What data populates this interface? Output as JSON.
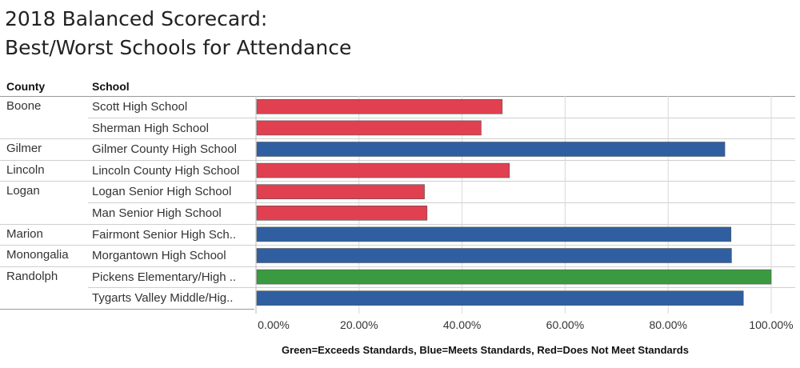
{
  "title_line1": "2018 Balanced Scorecard:",
  "title_line2": "Best/Worst Schools for Attendance",
  "headers": {
    "county": "County",
    "school": "School"
  },
  "legend_note": "Green=Exceeds Standards, Blue=Meets Standards, Red=Does Not Meet Standards",
  "colors": {
    "green": "#3a9a3f",
    "blue": "#2f5fa0",
    "red": "#e0404f",
    "grid": "#d8d8d8"
  },
  "chart_data": {
    "type": "bar",
    "orientation": "horizontal",
    "title": "2018 Balanced Scorecard: Best/Worst Schools for Attendance",
    "xlim": [
      0,
      1.0
    ],
    "ticks": [
      "0.00%",
      "20.00%",
      "40.00%",
      "60.00%",
      "80.00%",
      "100.00%"
    ],
    "tick_values": [
      0,
      0.2,
      0.4,
      0.6,
      0.8,
      1.0
    ],
    "rows": [
      {
        "county": "Boone",
        "school": "Scott High School",
        "value": 0.478,
        "status": "red"
      },
      {
        "county": "",
        "school": "Sherman High School",
        "value": 0.437,
        "status": "red"
      },
      {
        "county": "Gilmer",
        "school": "Gilmer County High School",
        "value": 0.91,
        "status": "blue"
      },
      {
        "county": "Lincoln",
        "school": "Lincoln County High School",
        "value": 0.492,
        "status": "red"
      },
      {
        "county": "Logan",
        "school": "Logan Senior High School",
        "value": 0.327,
        "status": "red"
      },
      {
        "county": "",
        "school": "Man Senior High School",
        "value": 0.332,
        "status": "red"
      },
      {
        "county": "Marion",
        "school": "Fairmont Senior High Sch..",
        "value": 0.922,
        "status": "blue"
      },
      {
        "county": "Monongalia",
        "school": "Morgantown High School",
        "value": 0.923,
        "status": "blue"
      },
      {
        "county": "Randolph",
        "school": "Pickens Elementary/High ..",
        "value": 1.0,
        "status": "green"
      },
      {
        "county": "",
        "school": "Tygarts Valley Middle/Hig..",
        "value": 0.946,
        "status": "blue"
      }
    ]
  }
}
